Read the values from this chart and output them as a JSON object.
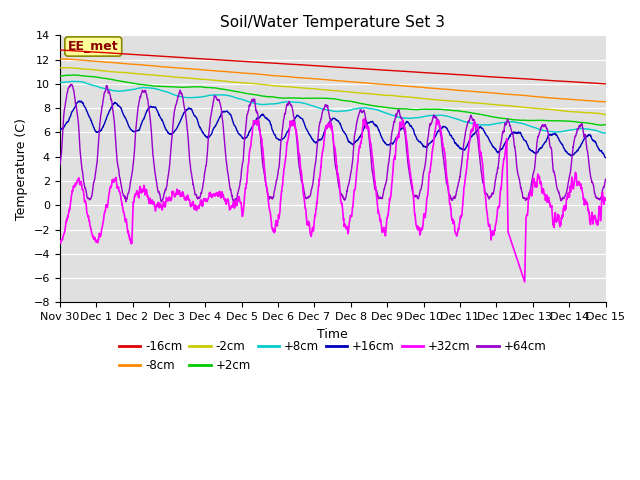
{
  "title": "Soil/Water Temperature Set 3",
  "xlabel": "Time",
  "ylabel": "Temperature (C)",
  "ylim": [
    -8,
    14
  ],
  "yticks": [
    -8,
    -6,
    -4,
    -2,
    0,
    2,
    4,
    6,
    8,
    10,
    12,
    14
  ],
  "background_color": "#ffffff",
  "plot_bg_color": "#e0e0e0",
  "annotation_text": "EE_met",
  "annotation_bg": "#ffff99",
  "annotation_border": "#8B0000",
  "line_colors": {
    "-16cm": "#dd0000",
    "-8cm": "#ff8800",
    "-2cm": "#cccc00",
    "+2cm": "#00cc00",
    "+8cm": "#00cccc",
    "+16cm": "#0000bb",
    "+32cm": "#ff00ff",
    "+64cm": "#9900cc"
  },
  "x_tick_labels": [
    "Nov 30",
    "Dec 1",
    "Dec 2",
    "Dec 3",
    "Dec 4",
    "Dec 5",
    "Dec 6",
    "Dec 7",
    "Dec 8",
    "Dec 9",
    "Dec 10",
    "Dec 11",
    "Dec 12",
    "Dec 13",
    "Dec 14",
    "Dec 15"
  ]
}
